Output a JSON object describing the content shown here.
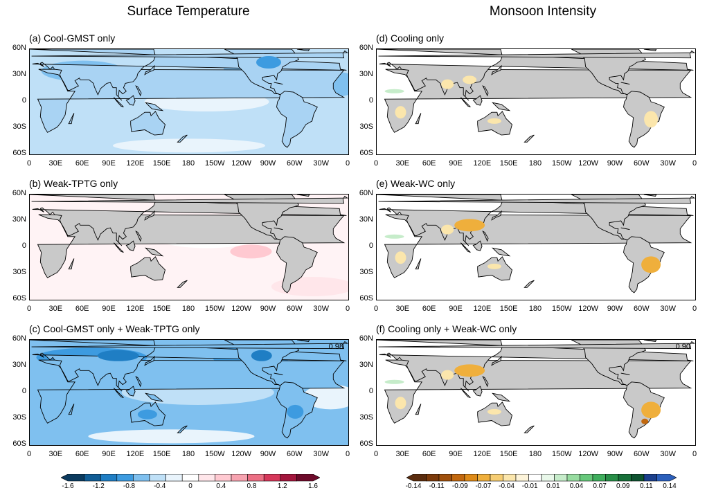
{
  "titles": {
    "left": "Surface Temperature",
    "right": "Monsoon Intensity"
  },
  "panels": [
    {
      "label": "(a) Cool-GMST only",
      "corr": "",
      "kind": "temp",
      "shade": "cool"
    },
    {
      "label": "(b) Weak-TPTG only",
      "corr": "",
      "kind": "temp",
      "shade": "warm"
    },
    {
      "label": "(c) Cool-GMST only + Weak-TPTG only",
      "corr": "0.98",
      "kind": "temp",
      "shade": "coolstrong"
    },
    {
      "label": "(d) Cooling only",
      "corr": "",
      "kind": "monsoon",
      "shade": "light"
    },
    {
      "label": "(e) Weak-WC only",
      "corr": "",
      "kind": "monsoon",
      "shade": "mid"
    },
    {
      "label": "(f) Cooling only + Weak-WC only",
      "corr": "0.90",
      "kind": "monsoon",
      "shade": "strong"
    }
  ],
  "lat_ticks": [
    "60N",
    "30N",
    "0",
    "30S",
    "60S"
  ],
  "lon_ticks": [
    "0",
    "30E",
    "60E",
    "90E",
    "120E",
    "150E",
    "180",
    "150W",
    "120W",
    "90W",
    "60W",
    "30W",
    "0"
  ],
  "colorbars": {
    "temp": {
      "labels": [
        "-1.6",
        "-1.2",
        "-0.8",
        "-0.4",
        "0",
        "0.4",
        "0.8",
        "1.2",
        "1.6"
      ],
      "colors": [
        "#0b3a5e",
        "#105d96",
        "#1f7ec4",
        "#3d9be0",
        "#7fc0ef",
        "#bfe0f7",
        "#e9f4fc",
        "#ffffff",
        "#ffe6ea",
        "#ffc9d1",
        "#f7a3b0",
        "#ec6f84",
        "#d6375a",
        "#a3163d",
        "#6d0a2a"
      ]
    },
    "monsoon": {
      "labels": [
        "-0.14",
        "-0.11",
        "-0.09",
        "-0.07",
        "-0.04",
        "-0.01",
        "0.01",
        "0.04",
        "0.07",
        "0.09",
        "0.11",
        "0.14"
      ],
      "colors": [
        "#5a2c0e",
        "#7c3a0b",
        "#a0500c",
        "#c2680e",
        "#de8a17",
        "#efaf3c",
        "#f6cd73",
        "#fbe6ac",
        "#fdf4da",
        "#ffffff",
        "#e9f8ea",
        "#c6ecca",
        "#97dca0",
        "#67c87b",
        "#3fae5d",
        "#278e47",
        "#18703a",
        "#0f5330",
        "#1b3f8c",
        "#2b5fbb"
      ]
    }
  },
  "colors": {
    "land": "#c9c9c9",
    "coast": "#000000",
    "cool_fill": "#bfe0f7",
    "cool_mid": "#7fc0ef",
    "cool_dark": "#3d9be0",
    "cool_deep": "#1f7ec4",
    "warm_light": "#ffe6ea",
    "warm_mid": "#ffc9d1",
    "dry_light": "#fbe6ac",
    "dry_mid": "#efaf3c",
    "dry_dark": "#c2680e",
    "wet_light": "#c6ecca"
  }
}
